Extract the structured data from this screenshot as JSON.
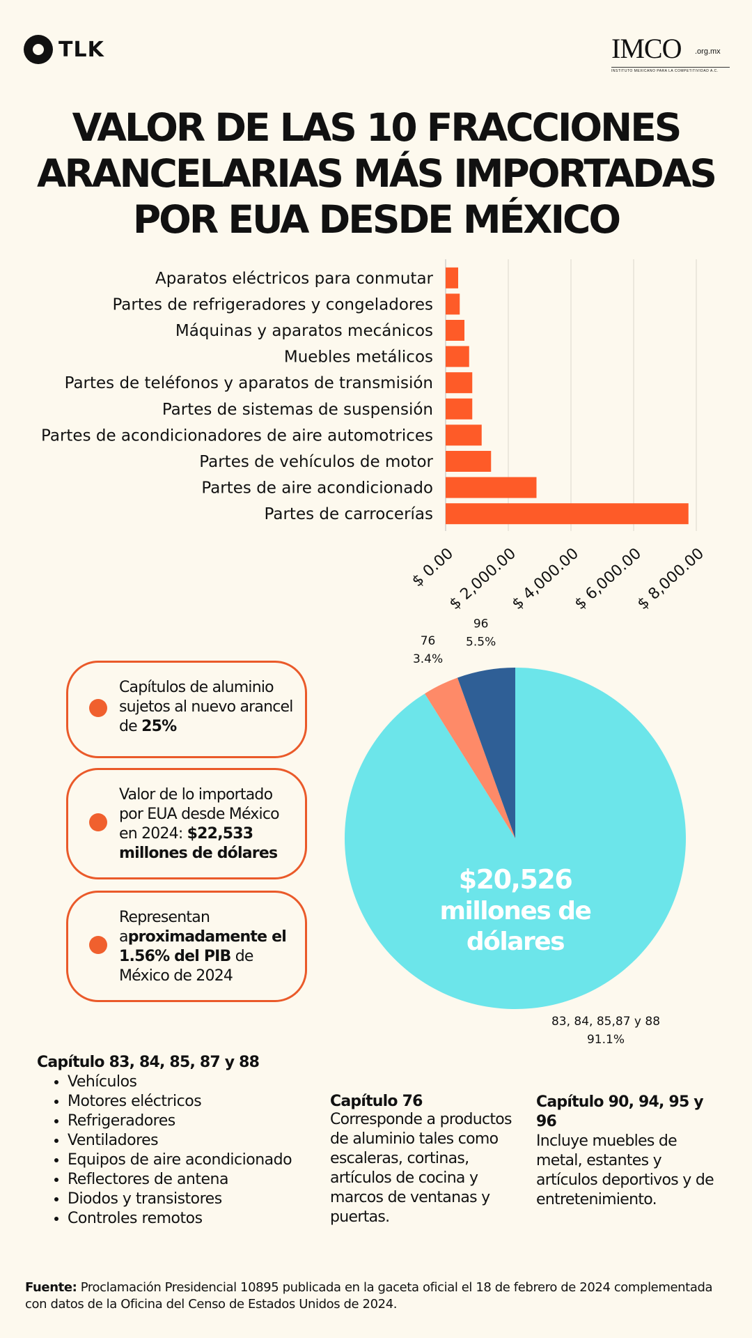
{
  "header": {
    "tlk_logo": "TLK",
    "imco_logo": "IMCO",
    "imco_domain": ".org.mx",
    "imco_subtitle": "INSTITUTO MEXICANO PARA LA COMPETITIVIDAD A.C."
  },
  "title": {
    "lines": [
      "VALOR DE LAS 10 FRACCIONES",
      "ARANCELARIAS MÁS IMPORTADAS",
      "POR EUA DESDE MÉXICO"
    ]
  },
  "colors": {
    "bar": "#fe5b28",
    "accent_border": "#ea5a2a",
    "pie_main": "#6ce5ea",
    "pie_76": "#fe8a68",
    "pie_96": "#2f5f96",
    "background": "#fdf9ee"
  },
  "chart_data": [
    {
      "type": "bar",
      "orientation": "horizontal",
      "categories": [
        "Aparatos eléctricos para conmutar",
        "Partes de refrigeradores y congeladores",
        "Máquinas y aparatos mecánicos",
        "Muebles metálicos",
        "Partes de teléfonos y aparatos de transmisión",
        "Partes de sistemas de suspensión",
        "Partes de acondicionadores de aire automotrices",
        "Partes de vehículos de motor",
        "Partes de aire acondicionado",
        "Partes de carrocerías"
      ],
      "values": [
        400,
        450,
        600,
        750,
        850,
        850,
        1150,
        1450,
        2900,
        7750
      ],
      "xlim": [
        0,
        8000
      ],
      "xticks": [
        0,
        2000,
        4000,
        6000,
        8000
      ],
      "xtick_labels": [
        "$ 0.00",
        "$ 2,000.00",
        "$ 4,000.00",
        "$ 6,000.00",
        "$ 8,000.00"
      ],
      "grid": "vertical",
      "legend": "none"
    },
    {
      "type": "pie",
      "slices": [
        {
          "label": "83, 84, 85,87 y 88",
          "value": 91.1,
          "pct_label": "91.1%",
          "color": "#6ce5ea"
        },
        {
          "label": "76",
          "value": 3.4,
          "pct_label": "3.4%",
          "color": "#fe8a68"
        },
        {
          "label": "96",
          "value": 5.5,
          "pct_label": "5.5%",
          "color": "#2f5f96"
        }
      ],
      "center_text": [
        "$20,526",
        "millones de",
        "dólares"
      ]
    }
  ],
  "info_boxes": [
    {
      "pre": "Capítulos de aluminio sujetos al nuevo arancel de ",
      "bold": "25%",
      "post": ""
    },
    {
      "pre": "Valor de lo importado por EUA desde México en 2024: ",
      "bold": "$22,533 millones de dólares",
      "post": ""
    },
    {
      "pre": "Representan a",
      "bold": "proximadamente el 1.56% del PIB",
      "post": " de México de 2024"
    }
  ],
  "columns": {
    "col1": {
      "heading": "Capítulo 83, 84, 85, 87 y 88",
      "items": [
        "Vehículos",
        "Motores eléctricos",
        "Refrigeradores",
        "Ventiladores",
        "Equipos de aire acondicionado",
        "Reflectores de antena",
        "Diodos y transistores",
        "Controles remotos"
      ]
    },
    "col2": {
      "heading": "Capítulo 76",
      "text": "Corresponde a productos de aluminio tales como escaleras, cortinas, artículos de cocina y marcos de ventanas y puertas."
    },
    "col3": {
      "heading": "Capítulo 90, 94, 95 y 96",
      "text": "Incluye muebles de metal, estantes y artículos deportivos y de entretenimiento."
    }
  },
  "footer": {
    "label": "Fuente:",
    "text": " Proclamación Presidencial 10895 publicada en la gaceta oficial el 18 de febrero de 2024 complementada con datos de la Oficina del Censo de Estados Unidos de 2024."
  }
}
